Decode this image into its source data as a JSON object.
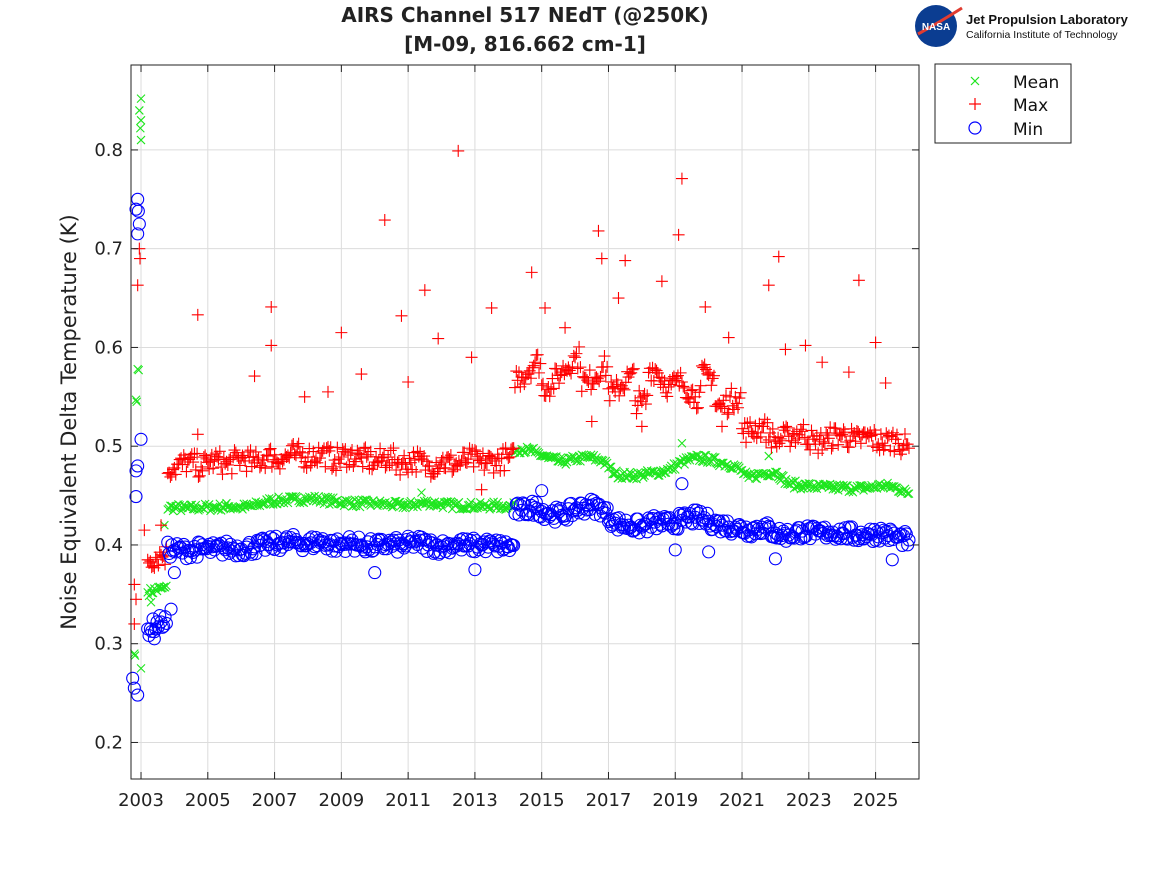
{
  "logo": {
    "org": "Jet Propulsion Laboratory",
    "sub": "California Institute of Technology",
    "badge": "NASA"
  },
  "chart_data": {
    "type": "scatter",
    "title": [
      "AIRS Channel 517 NEdT (@250K)",
      "[M-09, 816.662 cm-1]"
    ],
    "xlabel": "",
    "ylabel": "Noise Equivalent Delta Temperature (K)",
    "xlim": [
      2002.7,
      2026.3
    ],
    "ylim": [
      0.163,
      0.886
    ],
    "xticks": [
      2003,
      2005,
      2007,
      2009,
      2011,
      2013,
      2015,
      2017,
      2019,
      2021,
      2023,
      2025
    ],
    "yticks": [
      0.2,
      0.3,
      0.4,
      0.5,
      0.6,
      0.7,
      0.8
    ],
    "ytick_labels": [
      "0.2",
      "0.3",
      "0.4",
      "0.5",
      "0.6",
      "0.7",
      "0.8"
    ],
    "grid": true,
    "legend_position": "outside-top-right",
    "series": [
      {
        "name": "Mean",
        "marker": "x",
        "color": "#1ee61e",
        "trend": [
          [
            2003.2,
            0.352
          ],
          [
            2003.6,
            0.356
          ],
          [
            2004.0,
            0.438
          ],
          [
            2004.4,
            0.437
          ],
          [
            2004.8,
            0.438
          ],
          [
            2005.2,
            0.438
          ],
          [
            2005.6,
            0.439
          ],
          [
            2006.0,
            0.438
          ],
          [
            2006.4,
            0.44
          ],
          [
            2006.8,
            0.444
          ],
          [
            2007.2,
            0.445
          ],
          [
            2007.6,
            0.446
          ],
          [
            2008.0,
            0.447
          ],
          [
            2008.4,
            0.446
          ],
          [
            2008.8,
            0.444
          ],
          [
            2009.2,
            0.443
          ],
          [
            2009.6,
            0.442
          ],
          [
            2010.0,
            0.442
          ],
          [
            2010.4,
            0.441
          ],
          [
            2010.8,
            0.44
          ],
          [
            2011.2,
            0.441
          ],
          [
            2011.6,
            0.443
          ],
          [
            2012.0,
            0.441
          ],
          [
            2012.4,
            0.44
          ],
          [
            2012.8,
            0.44
          ],
          [
            2013.2,
            0.439
          ],
          [
            2013.6,
            0.44
          ],
          [
            2014.0,
            0.439
          ],
          [
            2014.4,
            0.497
          ],
          [
            2014.8,
            0.494
          ],
          [
            2015.2,
            0.488
          ],
          [
            2015.6,
            0.484
          ],
          [
            2016.0,
            0.487
          ],
          [
            2016.4,
            0.489
          ],
          [
            2016.8,
            0.486
          ],
          [
            2017.2,
            0.472
          ],
          [
            2017.6,
            0.47
          ],
          [
            2018.0,
            0.471
          ],
          [
            2018.4,
            0.473
          ],
          [
            2018.8,
            0.476
          ],
          [
            2019.2,
            0.484
          ],
          [
            2019.6,
            0.488
          ],
          [
            2020.0,
            0.487
          ],
          [
            2020.4,
            0.483
          ],
          [
            2020.8,
            0.48
          ],
          [
            2021.2,
            0.468
          ],
          [
            2021.6,
            0.472
          ],
          [
            2022.0,
            0.474
          ],
          [
            2022.4,
            0.462
          ],
          [
            2022.8,
            0.46
          ],
          [
            2023.2,
            0.459
          ],
          [
            2023.6,
            0.458
          ],
          [
            2024.0,
            0.458
          ],
          [
            2024.4,
            0.457
          ],
          [
            2024.8,
            0.458
          ],
          [
            2025.2,
            0.46
          ],
          [
            2025.6,
            0.458
          ],
          [
            2026.0,
            0.452
          ]
        ],
        "points": [
          [
            2002.8,
            0.29
          ],
          [
            2002.82,
            0.288
          ],
          [
            2002.85,
            0.547
          ],
          [
            2002.87,
            0.545
          ],
          [
            2002.9,
            0.578
          ],
          [
            2002.93,
            0.577
          ],
          [
            2002.95,
            0.84
          ],
          [
            2003.0,
            0.852
          ],
          [
            2003.0,
            0.83
          ],
          [
            2002.98,
            0.822
          ],
          [
            2003.0,
            0.81
          ],
          [
            2003.0,
            0.275
          ],
          [
            2003.7,
            0.42
          ],
          [
            2011.4,
            0.453
          ],
          [
            2019.2,
            0.503
          ],
          [
            2021.8,
            0.49
          ],
          [
            2003.3,
            0.342
          ]
        ]
      },
      {
        "name": "Max",
        "marker": "+",
        "color": "#ff0000",
        "trend": [
          [
            2003.2,
            0.385
          ],
          [
            2003.6,
            0.39
          ],
          [
            2004.0,
            0.478
          ],
          [
            2004.4,
            0.484
          ],
          [
            2004.8,
            0.479
          ],
          [
            2005.2,
            0.486
          ],
          [
            2005.6,
            0.481
          ],
          [
            2006.0,
            0.488
          ],
          [
            2006.4,
            0.483
          ],
          [
            2006.8,
            0.49
          ],
          [
            2007.2,
            0.487
          ],
          [
            2007.6,
            0.492
          ],
          [
            2008.0,
            0.489
          ],
          [
            2008.4,
            0.493
          ],
          [
            2008.8,
            0.486
          ],
          [
            2009.2,
            0.491
          ],
          [
            2009.6,
            0.488
          ],
          [
            2010.0,
            0.484
          ],
          [
            2010.4,
            0.489
          ],
          [
            2010.8,
            0.482
          ],
          [
            2011.2,
            0.486
          ],
          [
            2011.6,
            0.48
          ],
          [
            2012.0,
            0.485
          ],
          [
            2012.4,
            0.481
          ],
          [
            2012.8,
            0.487
          ],
          [
            2013.2,
            0.483
          ],
          [
            2013.6,
            0.485
          ],
          [
            2014.0,
            0.488
          ],
          [
            2014.4,
            0.57
          ],
          [
            2014.8,
            0.585
          ],
          [
            2015.2,
            0.56
          ],
          [
            2015.6,
            0.575
          ],
          [
            2016.0,
            0.59
          ],
          [
            2016.4,
            0.565
          ],
          [
            2016.8,
            0.58
          ],
          [
            2017.2,
            0.555
          ],
          [
            2017.6,
            0.57
          ],
          [
            2018.0,
            0.545
          ],
          [
            2018.4,
            0.578
          ],
          [
            2018.8,
            0.56
          ],
          [
            2019.2,
            0.565
          ],
          [
            2019.6,
            0.55
          ],
          [
            2020.0,
            0.572
          ],
          [
            2020.4,
            0.54
          ],
          [
            2020.8,
            0.55
          ],
          [
            2021.2,
            0.515
          ],
          [
            2021.6,
            0.52
          ],
          [
            2022.0,
            0.505
          ],
          [
            2022.4,
            0.51
          ],
          [
            2022.8,
            0.515
          ],
          [
            2023.2,
            0.502
          ],
          [
            2023.6,
            0.508
          ],
          [
            2024.0,
            0.512
          ],
          [
            2024.4,
            0.505
          ],
          [
            2024.8,
            0.51
          ],
          [
            2025.2,
            0.503
          ],
          [
            2025.6,
            0.507
          ],
          [
            2026.0,
            0.498
          ]
        ],
        "points": [
          [
            2002.8,
            0.32
          ],
          [
            2002.85,
            0.345
          ],
          [
            2002.8,
            0.36
          ],
          [
            2002.95,
            0.7
          ],
          [
            2002.97,
            0.69
          ],
          [
            2002.9,
            0.663
          ],
          [
            2003.1,
            0.415
          ],
          [
            2003.6,
            0.42
          ],
          [
            2004.7,
            0.633
          ],
          [
            2004.7,
            0.512
          ],
          [
            2006.4,
            0.571
          ],
          [
            2006.9,
            0.641
          ],
          [
            2006.9,
            0.602
          ],
          [
            2007.9,
            0.55
          ],
          [
            2008.6,
            0.555
          ],
          [
            2009.0,
            0.615
          ],
          [
            2009.6,
            0.573
          ],
          [
            2010.3,
            0.729
          ],
          [
            2010.8,
            0.632
          ],
          [
            2011.0,
            0.565
          ],
          [
            2011.5,
            0.658
          ],
          [
            2011.9,
            0.609
          ],
          [
            2012.5,
            0.799
          ],
          [
            2012.9,
            0.59
          ],
          [
            2013.2,
            0.456
          ],
          [
            2013.5,
            0.64
          ],
          [
            2014.7,
            0.676
          ],
          [
            2015.1,
            0.64
          ],
          [
            2015.7,
            0.62
          ],
          [
            2016.7,
            0.718
          ],
          [
            2016.8,
            0.69
          ],
          [
            2017.3,
            0.65
          ],
          [
            2017.5,
            0.688
          ],
          [
            2018.6,
            0.667
          ],
          [
            2019.1,
            0.714
          ],
          [
            2019.2,
            0.771
          ],
          [
            2019.9,
            0.641
          ],
          [
            2020.6,
            0.61
          ],
          [
            2021.8,
            0.663
          ],
          [
            2022.1,
            0.692
          ],
          [
            2022.3,
            0.598
          ],
          [
            2022.9,
            0.602
          ],
          [
            2023.4,
            0.585
          ],
          [
            2024.2,
            0.575
          ],
          [
            2024.5,
            0.668
          ],
          [
            2025.0,
            0.605
          ],
          [
            2025.3,
            0.564
          ],
          [
            2016.5,
            0.525
          ],
          [
            2018.0,
            0.52
          ],
          [
            2020.4,
            0.52
          ]
        ]
      },
      {
        "name": "Min",
        "marker": "o",
        "color": "#0000ff",
        "trend": [
          [
            2003.2,
            0.315
          ],
          [
            2003.6,
            0.322
          ],
          [
            2004.0,
            0.395
          ],
          [
            2004.4,
            0.394
          ],
          [
            2004.8,
            0.396
          ],
          [
            2005.2,
            0.395
          ],
          [
            2005.6,
            0.397
          ],
          [
            2006.0,
            0.396
          ],
          [
            2006.4,
            0.398
          ],
          [
            2006.8,
            0.4
          ],
          [
            2007.2,
            0.402
          ],
          [
            2007.6,
            0.403
          ],
          [
            2008.0,
            0.401
          ],
          [
            2008.4,
            0.404
          ],
          [
            2008.8,
            0.399
          ],
          [
            2009.2,
            0.402
          ],
          [
            2009.6,
            0.4
          ],
          [
            2010.0,
            0.398
          ],
          [
            2010.4,
            0.401
          ],
          [
            2010.8,
            0.399
          ],
          [
            2011.2,
            0.403
          ],
          [
            2011.6,
            0.4
          ],
          [
            2012.0,
            0.398
          ],
          [
            2012.4,
            0.401
          ],
          [
            2012.8,
            0.399
          ],
          [
            2013.2,
            0.4
          ],
          [
            2013.6,
            0.399
          ],
          [
            2014.0,
            0.398
          ],
          [
            2014.4,
            0.435
          ],
          [
            2014.8,
            0.438
          ],
          [
            2015.2,
            0.432
          ],
          [
            2015.6,
            0.43
          ],
          [
            2016.0,
            0.436
          ],
          [
            2016.4,
            0.44
          ],
          [
            2016.8,
            0.437
          ],
          [
            2017.2,
            0.422
          ],
          [
            2017.6,
            0.42
          ],
          [
            2018.0,
            0.418
          ],
          [
            2018.4,
            0.423
          ],
          [
            2018.8,
            0.421
          ],
          [
            2019.2,
            0.425
          ],
          [
            2019.6,
            0.428
          ],
          [
            2020.0,
            0.424
          ],
          [
            2020.4,
            0.42
          ],
          [
            2020.8,
            0.418
          ],
          [
            2021.2,
            0.415
          ],
          [
            2021.6,
            0.418
          ],
          [
            2022.0,
            0.412
          ],
          [
            2022.4,
            0.41
          ],
          [
            2022.8,
            0.414
          ],
          [
            2023.2,
            0.411
          ],
          [
            2023.6,
            0.413
          ],
          [
            2024.0,
            0.412
          ],
          [
            2024.4,
            0.41
          ],
          [
            2024.8,
            0.411
          ],
          [
            2025.2,
            0.412
          ],
          [
            2025.6,
            0.408
          ],
          [
            2026.0,
            0.405
          ]
        ],
        "points": [
          [
            2002.75,
            0.265
          ],
          [
            2002.8,
            0.255
          ],
          [
            2002.9,
            0.248
          ],
          [
            2002.85,
            0.74
          ],
          [
            2002.9,
            0.75
          ],
          [
            2002.95,
            0.725
          ],
          [
            2002.9,
            0.715
          ],
          [
            2002.92,
            0.738
          ],
          [
            2002.9,
            0.48
          ],
          [
            2002.85,
            0.475
          ],
          [
            2003.0,
            0.507
          ],
          [
            2002.85,
            0.449
          ],
          [
            2003.4,
            0.305
          ],
          [
            2003.9,
            0.335
          ],
          [
            2004.0,
            0.372
          ],
          [
            2010.0,
            0.372
          ],
          [
            2013.0,
            0.375
          ],
          [
            2015.0,
            0.455
          ],
          [
            2019.2,
            0.462
          ],
          [
            2019.0,
            0.395
          ],
          [
            2020.0,
            0.393
          ],
          [
            2022.0,
            0.386
          ],
          [
            2025.5,
            0.385
          ]
        ]
      }
    ]
  }
}
